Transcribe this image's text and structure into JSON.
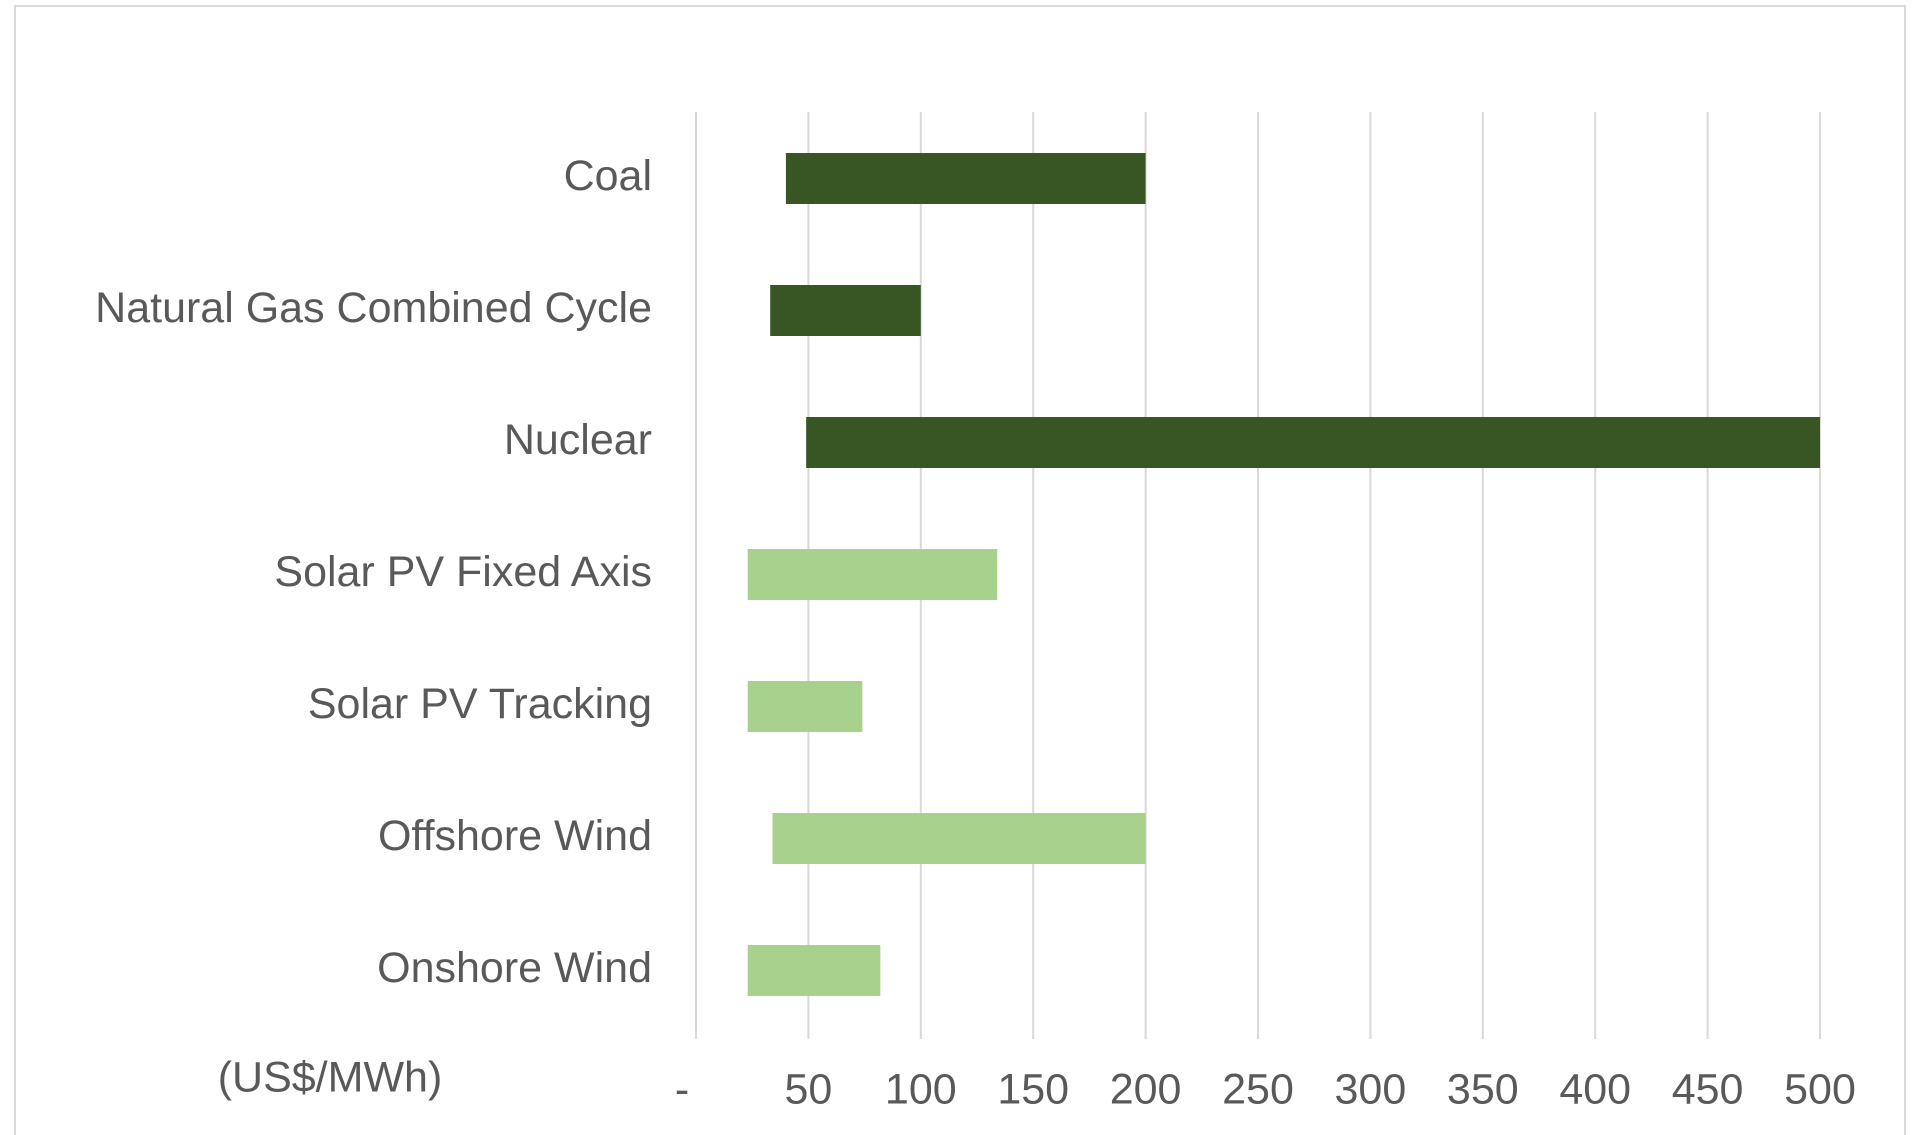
{
  "chart_data": {
    "type": "range-bar",
    "orientation": "horizontal",
    "x_label": "(US$/MWh)",
    "categories": [
      "Coal",
      "Natural Gas Combined Cycle",
      "Nuclear",
      "Solar PV Fixed Axis",
      "Solar PV Tracking",
      "Offshore Wind",
      "Onshore Wind"
    ],
    "low": [
      40,
      33,
      49,
      23,
      23,
      34,
      23
    ],
    "high": [
      200,
      100,
      500,
      134,
      74,
      200,
      82
    ],
    "colors": [
      "#375623",
      "#375623",
      "#375623",
      "#a9d18e",
      "#a9d18e",
      "#a9d18e",
      "#a9d18e"
    ],
    "xlim": [
      0,
      500
    ],
    "xticks": [
      {
        "value": 0,
        "label": "-"
      },
      50,
      100,
      150,
      200,
      250,
      300,
      350,
      400,
      450,
      500
    ],
    "grid": true
  }
}
